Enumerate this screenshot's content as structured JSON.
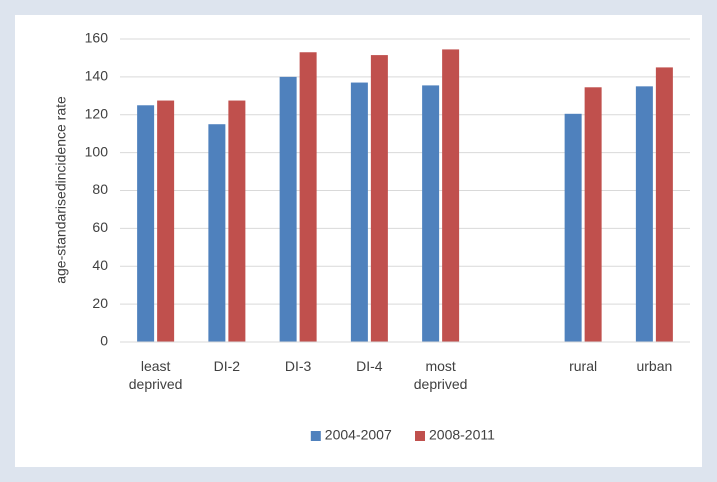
{
  "chart_data": {
    "type": "bar",
    "y_label": "age-standarisedincidence rate",
    "categories": [
      "least deprived",
      "DI-2",
      "DI-3",
      "DI-4",
      "most deprived",
      null,
      "rural",
      "urban"
    ],
    "series": [
      {
        "name": "2004-2007",
        "color": "#4f81bd",
        "values": [
          125,
          115,
          140,
          137,
          135.5,
          null,
          120.5,
          135
        ]
      },
      {
        "name": "2008-2011",
        "color": "#c0504d",
        "values": [
          127.5,
          127.5,
          153,
          151.5,
          154.5,
          null,
          134.5,
          145
        ]
      }
    ],
    "ylim": [
      0,
      160
    ],
    "yticks": [
      0,
      20,
      40,
      60,
      80,
      100,
      120,
      140,
      160
    ],
    "grid": true,
    "legend": "bottom"
  }
}
